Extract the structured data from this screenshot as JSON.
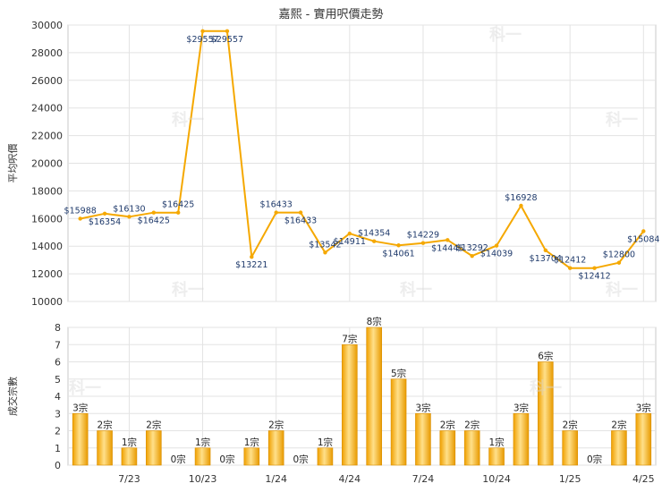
{
  "chart_data": [
    {
      "type": "line",
      "title": "嘉熙 - 實用呎價走勢",
      "ylabel": "平均呎價",
      "ylim": [
        10000,
        30000
      ],
      "yticks": [
        10000,
        12000,
        14000,
        16000,
        18000,
        20000,
        22000,
        24000,
        26000,
        28000,
        30000
      ],
      "grid": true,
      "color": "#f5a800",
      "values": [
        15988,
        16354,
        16130,
        16425,
        16425,
        29557,
        29557,
        13221,
        16433,
        16433,
        13542,
        14911,
        14354,
        14061,
        14229,
        14445,
        13292,
        14039,
        16928,
        13704,
        12412,
        12412,
        12800,
        15084
      ],
      "labels": [
        "$15988",
        "$16354",
        "$16130",
        "$16425",
        "$16425",
        "$29557",
        "$29557",
        "$13221",
        "$16433",
        "$16433",
        "$13542",
        "$14911",
        "$14354",
        "$14061",
        "$14229",
        "$14445",
        "$13292",
        "$14039",
        "$16928",
        "$13704",
        "$12412",
        "$12412",
        "$12800",
        "$15084"
      ]
    },
    {
      "type": "bar",
      "ylabel": "成交宗數",
      "ylim": [
        0,
        8
      ],
      "yticks": [
        0,
        1,
        2,
        3,
        4,
        5,
        6,
        7,
        8
      ],
      "grid": true,
      "color": "#f5a800",
      "values": [
        3,
        2,
        1,
        2,
        0,
        1,
        0,
        1,
        2,
        0,
        1,
        7,
        8,
        5,
        3,
        2,
        2,
        1,
        3,
        6,
        2,
        0,
        2,
        3
      ],
      "labels": [
        "3宗",
        "2宗",
        "1宗",
        "2宗",
        "0宗",
        "1宗",
        "0宗",
        "1宗",
        "2宗",
        "0宗",
        "1宗",
        "7宗",
        "8宗",
        "5宗",
        "3宗",
        "2宗",
        "2宗",
        "1宗",
        "3宗",
        "6宗",
        "2宗",
        "0宗",
        "2宗",
        "3宗"
      ],
      "xticks": [
        "7/23",
        "10/23",
        "1/24",
        "4/24",
        "7/24",
        "10/24",
        "1/25",
        "4/25"
      ]
    }
  ],
  "watermark": "科一"
}
